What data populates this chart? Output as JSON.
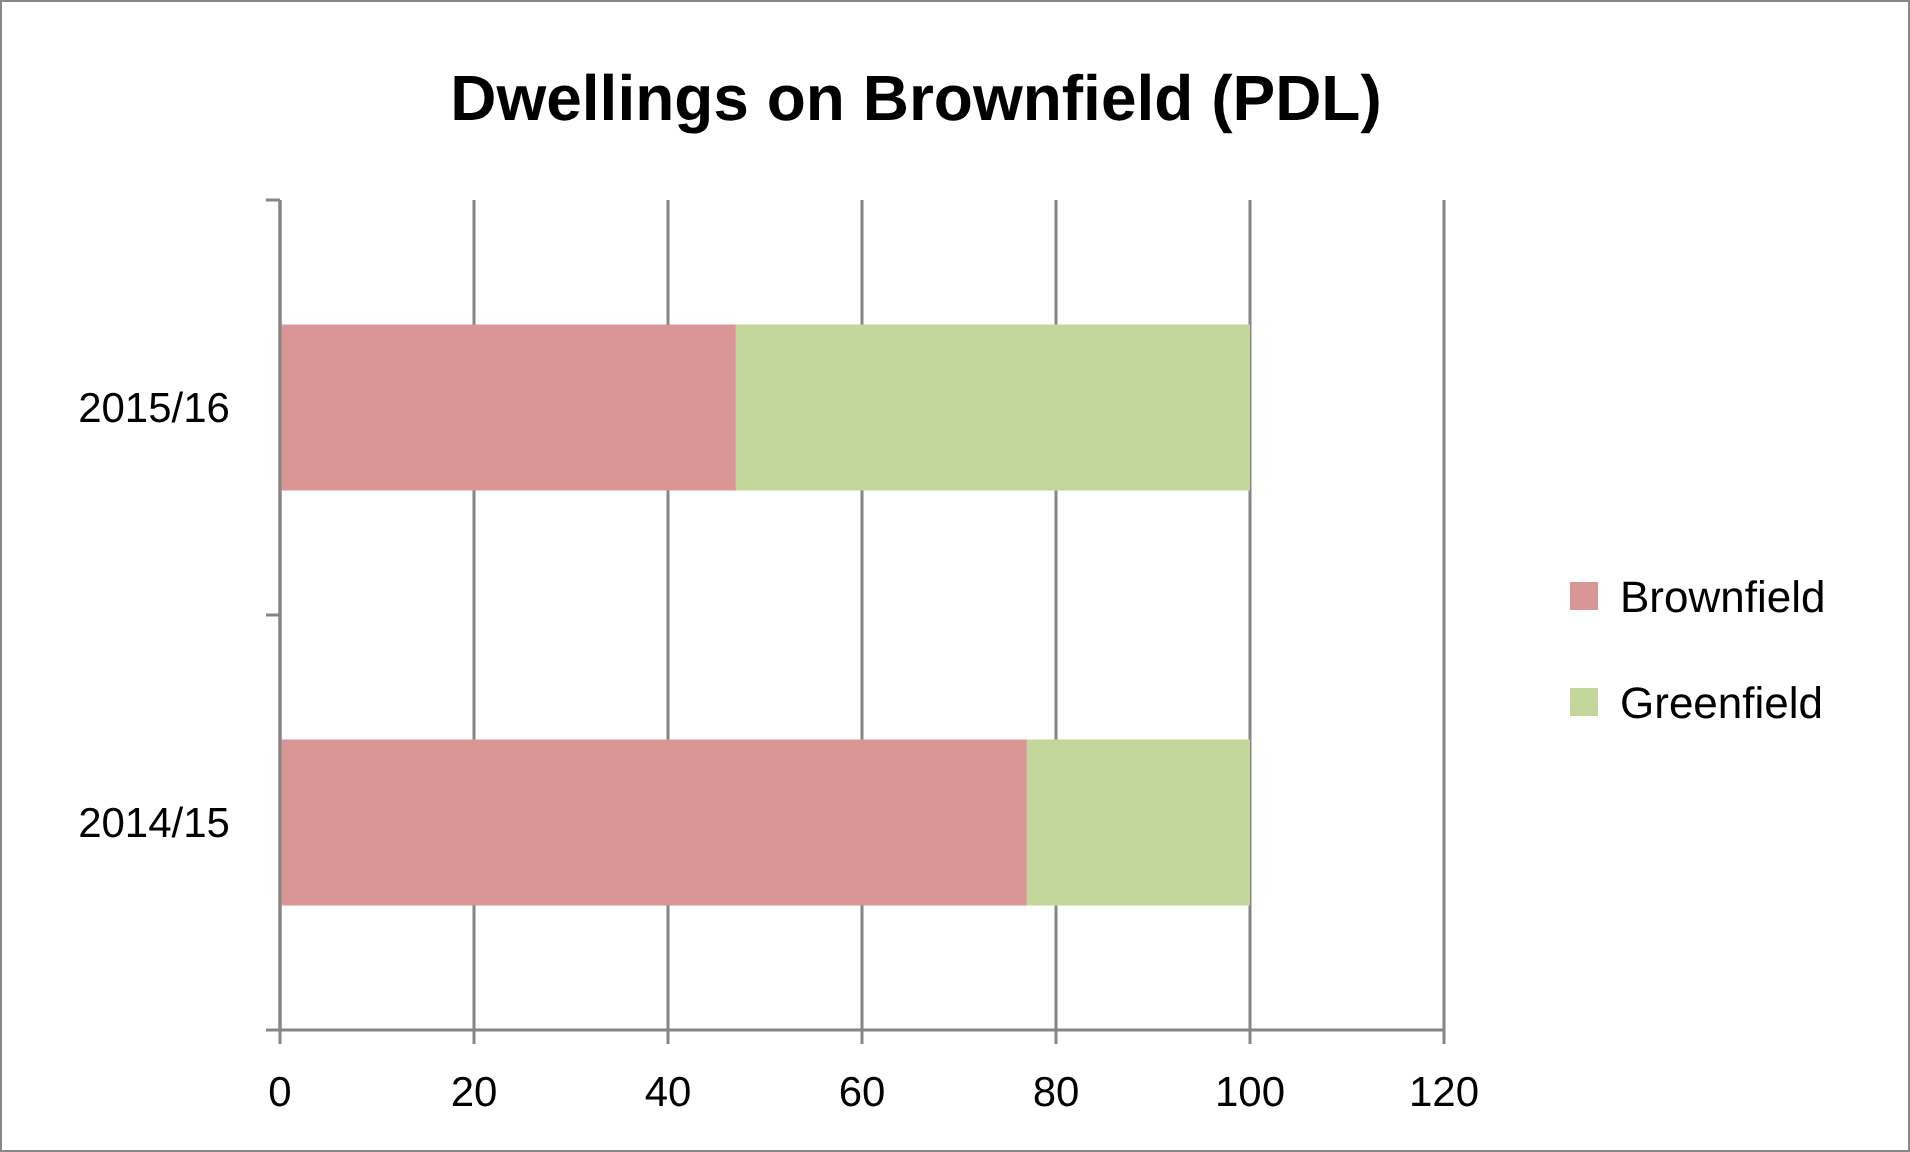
{
  "chart_data": {
    "type": "bar",
    "title": "Dwellings on Brownfield (PDL)",
    "orientation": "horizontal",
    "stacked": true,
    "categories": [
      "2015/16",
      "2014/15"
    ],
    "series": [
      {
        "name": "Brownfield",
        "color": "#d99694",
        "values": [
          47,
          77
        ]
      },
      {
        "name": "Greenfield",
        "color": "#c3d69b",
        "values": [
          53,
          23
        ]
      }
    ],
    "xlim": [
      0,
      120
    ],
    "xticks": [
      0,
      20,
      40,
      60,
      80,
      100,
      120
    ],
    "grid": "x",
    "legend": "right"
  }
}
